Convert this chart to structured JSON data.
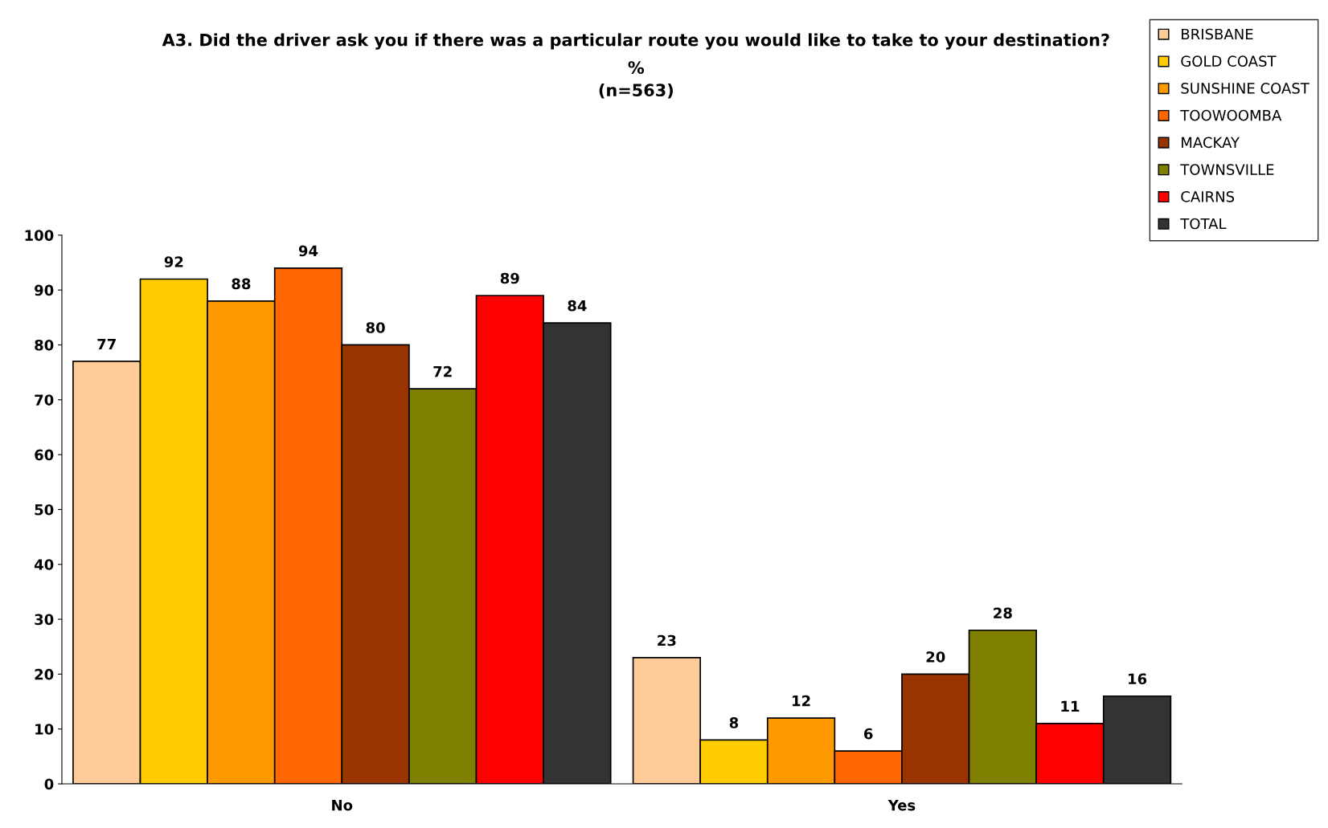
{
  "chart_data": {
    "type": "bar",
    "title": "A3. Did the driver ask you if there was a particular route you would like to take to your destination?",
    "subtitle": "%\n(n=563)",
    "categories": [
      "No",
      "Yes"
    ],
    "series": [
      {
        "name": "BRISBANE",
        "color": "#ffcc99",
        "values": [
          77,
          23
        ]
      },
      {
        "name": "GOLD COAST",
        "color": "#ffcc00",
        "values": [
          92,
          8
        ]
      },
      {
        "name": "SUNSHINE COAST",
        "color": "#ff9900",
        "values": [
          88,
          12
        ]
      },
      {
        "name": "TOOWOOMBA",
        "color": "#ff6600",
        "values": [
          94,
          6
        ]
      },
      {
        "name": "MACKAY",
        "color": "#993300",
        "values": [
          80,
          20
        ]
      },
      {
        "name": "TOWNSVILLE",
        "color": "#808000",
        "values": [
          72,
          28
        ]
      },
      {
        "name": "CAIRNS",
        "color": "#ff0000",
        "values": [
          89,
          11
        ]
      },
      {
        "name": "TOTAL",
        "color": "#333333",
        "values": [
          84,
          16
        ]
      }
    ],
    "ylim": [
      0,
      100
    ],
    "yticks": [
      0,
      10,
      20,
      30,
      40,
      50,
      60,
      70,
      80,
      90,
      100
    ],
    "grid": false,
    "legend": "top right",
    "data_labels": true
  }
}
